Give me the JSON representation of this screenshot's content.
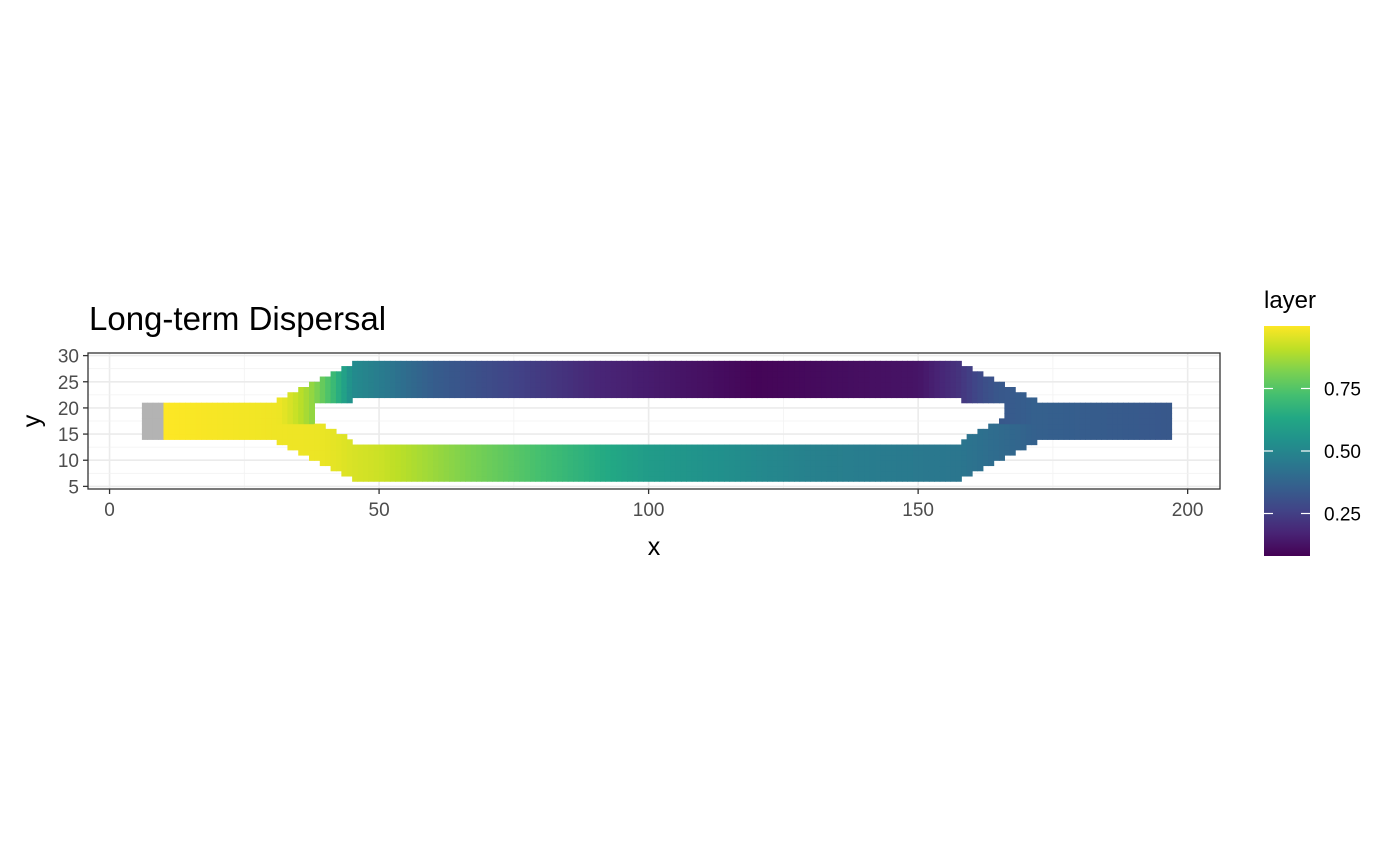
{
  "chart_data": {
    "type": "heatmap",
    "title": "Long-term Dispersal",
    "xlabel": "x",
    "ylabel": "y",
    "xlim": [
      -4,
      206
    ],
    "ylim": [
      4.5,
      30.5
    ],
    "x_ticks": [
      0,
      50,
      100,
      150,
      200
    ],
    "y_ticks": [
      5,
      10,
      15,
      20,
      25,
      30
    ],
    "grid": true,
    "legend": {
      "title": "layer",
      "position": "right",
      "min": 0.08,
      "max": 1.0,
      "ticks": [
        0.25,
        0.5,
        0.75
      ],
      "tick_labels": [
        "0.25",
        "0.50",
        "0.75"
      ]
    },
    "colormap": "viridis",
    "na_color": "#b3b3b3",
    "regions": [
      {
        "name": "source",
        "x": [
          6,
          10
        ],
        "y": [
          14,
          21
        ],
        "value": null
      },
      {
        "name": "inlet channel",
        "x": [
          10,
          31
        ],
        "y": [
          14,
          21
        ],
        "value_range": [
          1.0,
          0.98
        ]
      },
      {
        "name": "upper branch",
        "x": [
          45,
          158
        ],
        "y": [
          22,
          29
        ],
        "value_path": [
          [
            38,
            0.6
          ],
          [
            60,
            0.35
          ],
          [
            90,
            0.18
          ],
          [
            120,
            0.09
          ],
          [
            150,
            0.13
          ],
          [
            165,
            0.3
          ]
        ]
      },
      {
        "name": "lower branch",
        "x": [
          45,
          158
        ],
        "y": [
          6,
          13
        ],
        "value_path": [
          [
            38,
            0.97
          ],
          [
            50,
            0.93
          ],
          [
            75,
            0.76
          ],
          [
            100,
            0.58
          ],
          [
            130,
            0.48
          ],
          [
            158,
            0.44
          ]
        ]
      },
      {
        "name": "outlet channel",
        "x": [
          172,
          197
        ],
        "y": [
          14,
          21
        ],
        "value_range": [
          0.36,
          0.33
        ]
      }
    ]
  }
}
